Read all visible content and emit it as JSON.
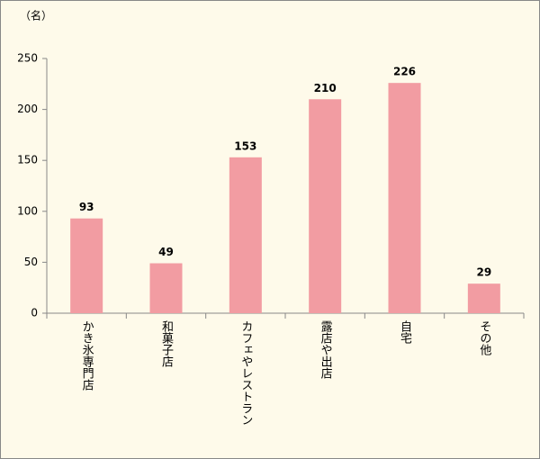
{
  "chart_data": {
    "type": "bar",
    "y_label": "（名）",
    "categories": [
      "かき氷専門店",
      "和菓子店",
      "カフェやレストラン",
      "露店や出店",
      "自宅",
      "その他"
    ],
    "values": [
      93,
      49,
      153,
      210,
      226,
      29
    ],
    "color": "#f29ca2",
    "ylim": [
      0,
      250
    ],
    "yticks": [
      0,
      50,
      100,
      150,
      200,
      250
    ],
    "grid": false,
    "background": "#fefaea"
  }
}
